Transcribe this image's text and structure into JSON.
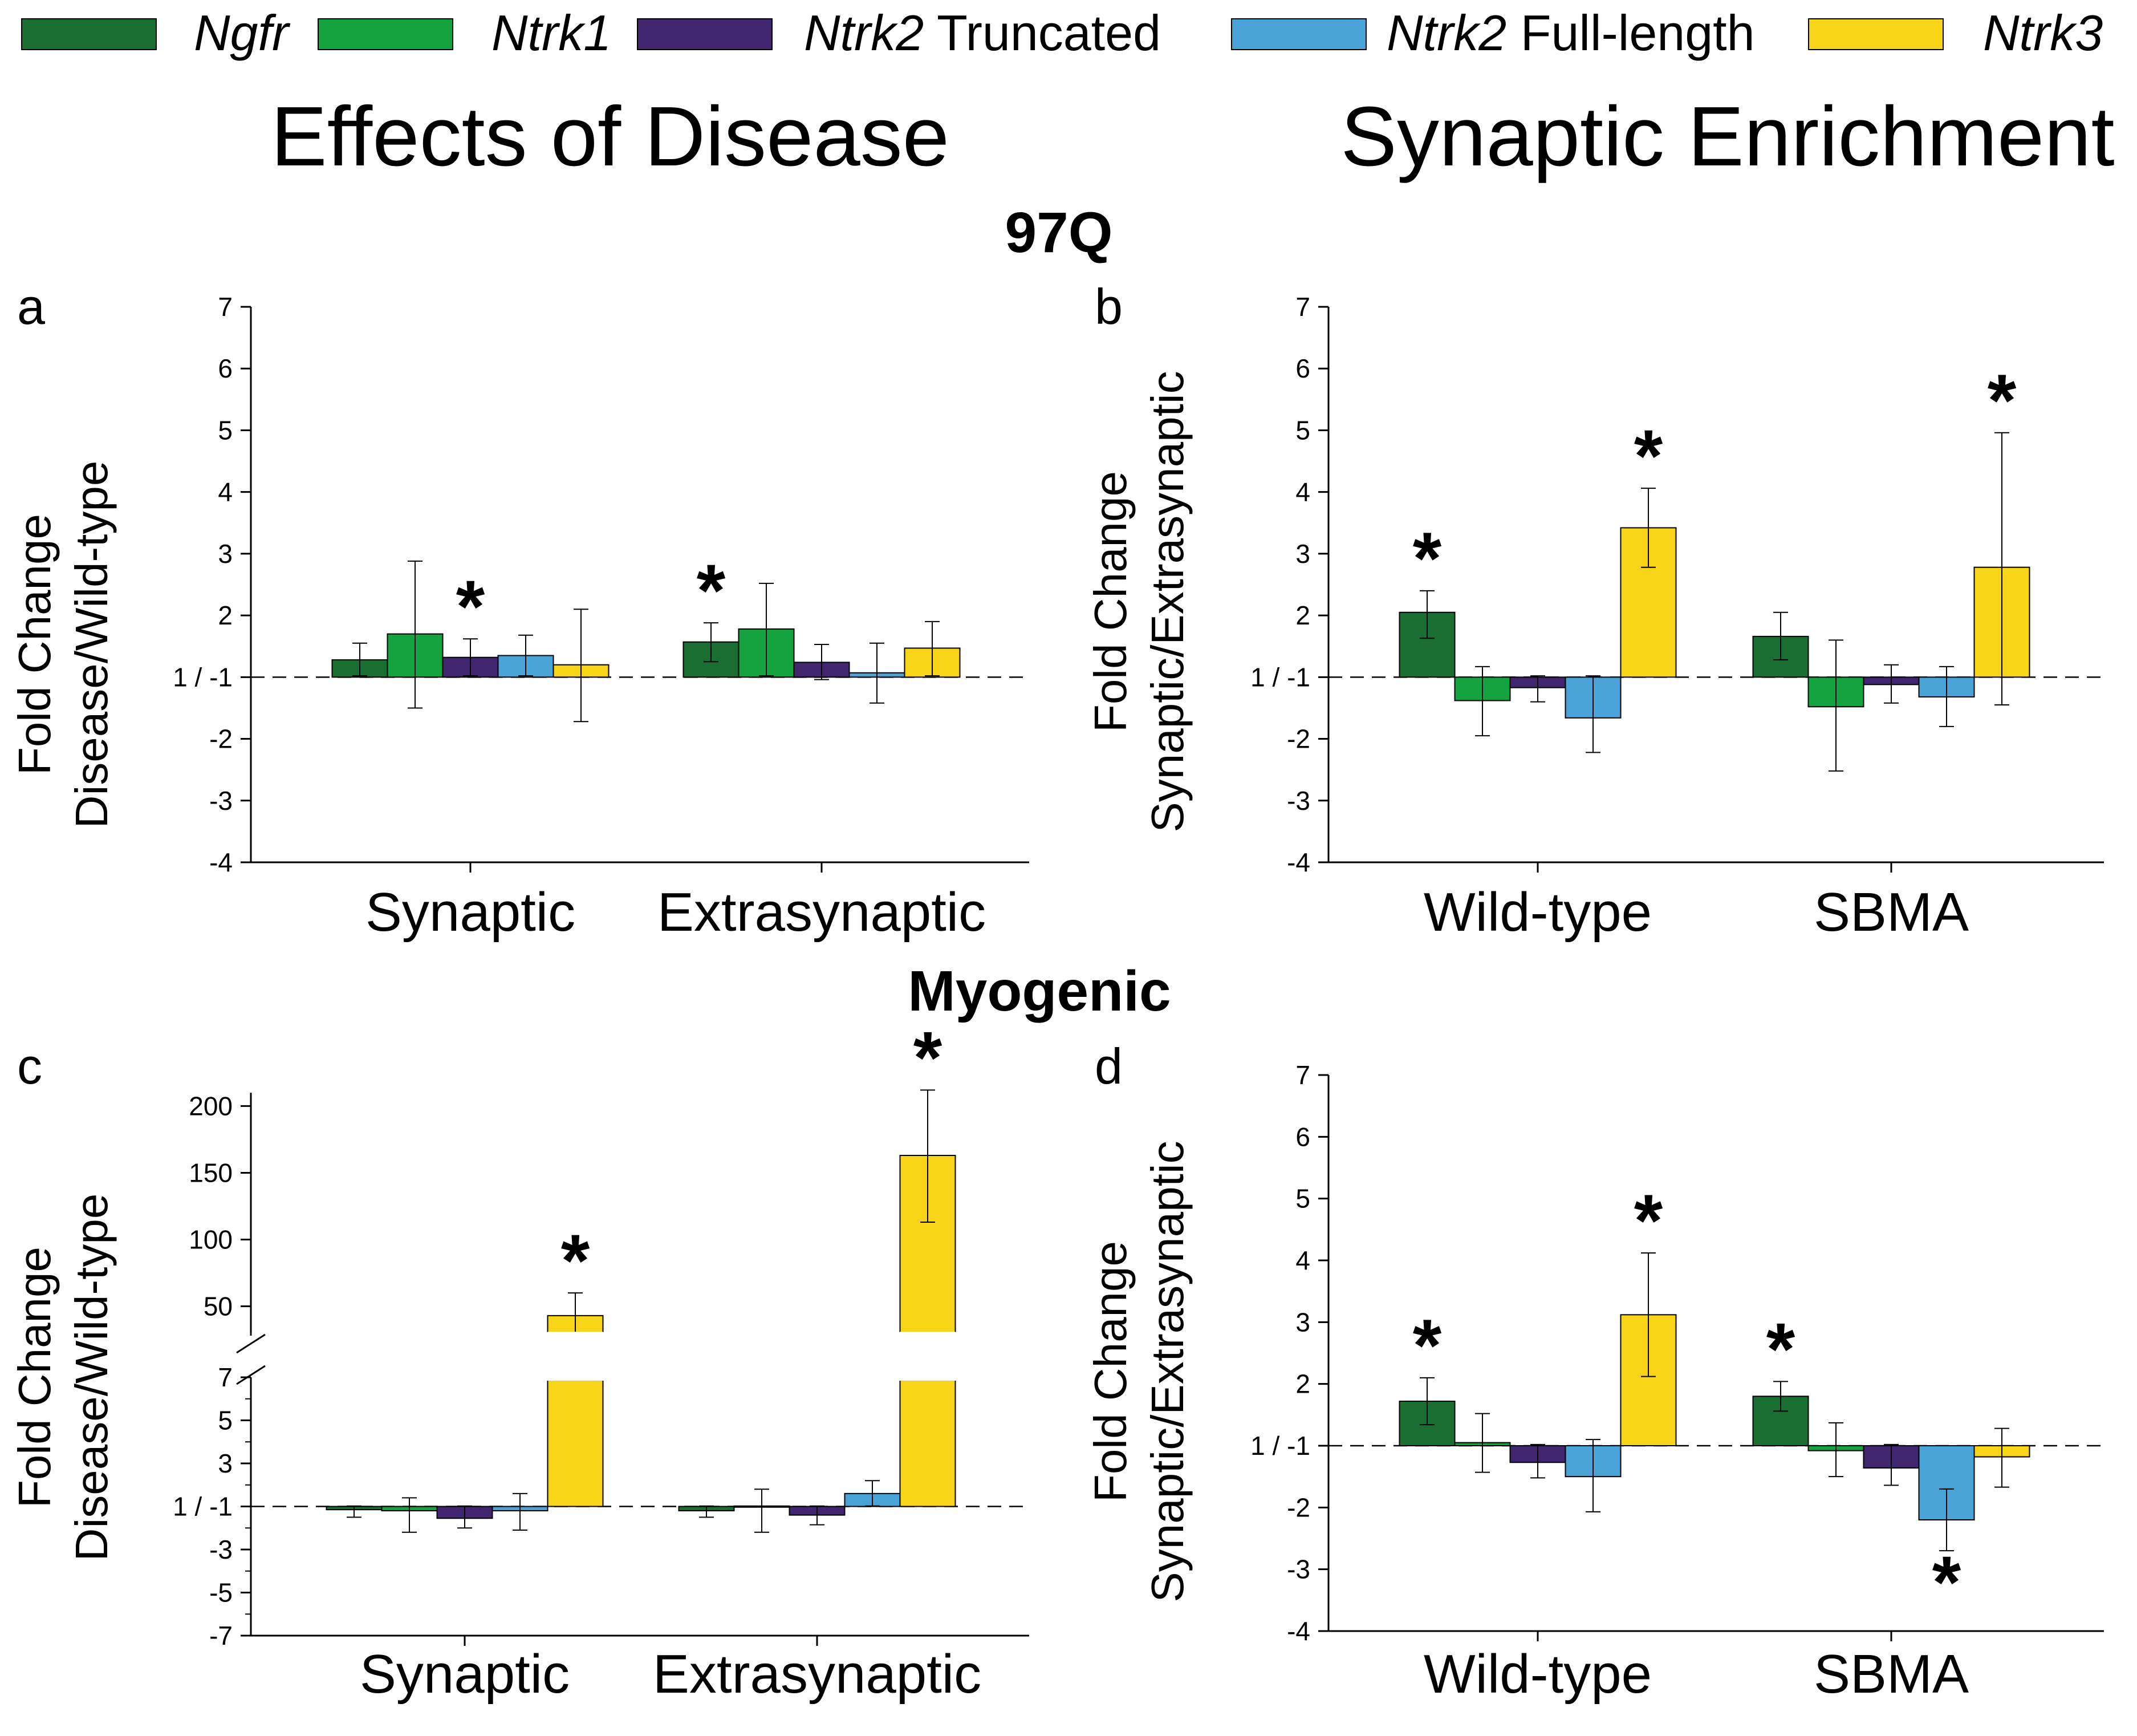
{
  "legend": [
    {
      "gene": "Ngfr",
      "suffix": ""
    },
    {
      "gene": "Ntrk1",
      "suffix": ""
    },
    {
      "gene": "Ntrk2",
      "suffix": " Truncated"
    },
    {
      "gene": "Ntrk2",
      "suffix": " Full-length"
    },
    {
      "gene": "Ntrk3",
      "suffix": ""
    }
  ],
  "colors": {
    "Ngfr": "#1a6e32",
    "Ntrk1": "#14a33e",
    "Ntrk2 Truncated": "#40266e",
    "Ntrk2 Full-length": "#4aa3d6",
    "Ntrk3": "#f7d417"
  },
  "headings": {
    "left": "Effects of Disease",
    "right": "Synaptic Enrichment",
    "row1": "97Q",
    "row2": "Myogenic"
  },
  "panels": {
    "a": "a",
    "b": "b",
    "c": "c",
    "d": "d"
  },
  "chart_data": [
    {
      "id": "a",
      "type": "bar",
      "ylabel_line1": "Fold Change",
      "ylabel_line2": "Disease/Wild-type",
      "ylim": [
        -4,
        7
      ],
      "yticks": [
        -4,
        -3,
        -2,
        "1 / -1",
        2,
        3,
        4,
        5,
        6,
        7
      ],
      "categories": [
        "Synaptic",
        "Extrasynaptic"
      ],
      "series": [
        {
          "name": "Ngfr",
          "values": [
            1.28,
            1.57
          ],
          "err_up": [
            1.55,
            1.88
          ],
          "err_low": [
            1.02,
            1.25
          ],
          "sig": [
            false,
            true
          ]
        },
        {
          "name": "Ntrk1",
          "values": [
            1.7,
            1.78
          ],
          "err_up": [
            2.88,
            2.52
          ],
          "err_low": [
            -1.5,
            1.02
          ],
          "sig": [
            false,
            false
          ]
        },
        {
          "name": "Ntrk2 Truncated",
          "values": [
            1.32,
            1.24
          ],
          "err_up": [
            1.62,
            1.53
          ],
          "err_low": [
            1.02,
            -1.04
          ],
          "sig": [
            true,
            false
          ]
        },
        {
          "name": "Ntrk2 Full-length",
          "values": [
            1.35,
            1.07
          ],
          "err_up": [
            1.68,
            1.55
          ],
          "err_low": [
            1.02,
            -1.42
          ],
          "sig": [
            false,
            false
          ]
        },
        {
          "name": "Ntrk3",
          "values": [
            1.2,
            1.47
          ],
          "err_up": [
            2.1,
            1.9
          ],
          "err_low": [
            -1.72,
            1.02
          ],
          "sig": [
            false,
            false
          ]
        }
      ]
    },
    {
      "id": "b",
      "type": "bar",
      "ylabel_line1": "Fold Change",
      "ylabel_line2": "Synaptic/Extrasynaptic",
      "ylim": [
        -4,
        7
      ],
      "yticks": [
        -4,
        -3,
        -2,
        "1 / -1",
        2,
        3,
        4,
        5,
        6,
        7
      ],
      "categories": [
        "Wild-type",
        "SBMA"
      ],
      "series": [
        {
          "name": "Ngfr",
          "values": [
            2.05,
            1.66
          ],
          "err_up": [
            2.4,
            2.05
          ],
          "err_low": [
            1.63,
            1.28
          ],
          "sig": [
            true,
            false
          ]
        },
        {
          "name": "Ntrk1",
          "values": [
            -1.38,
            -1.48
          ],
          "err_up": [
            1.17,
            1.6
          ],
          "err_low": [
            -1.95,
            -2.52
          ],
          "sig": [
            false,
            false
          ]
        },
        {
          "name": "Ntrk2 Truncated",
          "values": [
            -1.17,
            -1.12
          ],
          "err_up": [
            1.02,
            1.2
          ],
          "err_low": [
            -1.4,
            -1.42
          ],
          "sig": [
            false,
            false
          ]
        },
        {
          "name": "Ntrk2 Full-length",
          "values": [
            -1.66,
            -1.32
          ],
          "err_up": [
            1.02,
            1.17
          ],
          "err_low": [
            -2.22,
            -1.8
          ],
          "sig": [
            false,
            false
          ]
        },
        {
          "name": "Ntrk3",
          "values": [
            3.42,
            2.78
          ],
          "err_up": [
            4.06,
            4.96
          ],
          "err_low": [
            2.78,
            -1.45
          ],
          "sig": [
            true,
            true
          ]
        }
      ]
    },
    {
      "id": "c",
      "type": "bar",
      "ylabel_line1": "Fold Change",
      "ylabel_line2": "Disease/Wild-type",
      "axis_break": true,
      "lower_ylim": [
        -7,
        7
      ],
      "upper_ylim": [
        28,
        210
      ],
      "yticks_lower": [
        -7,
        -5,
        -3,
        "1 / -1",
        3,
        5,
        7
      ],
      "yticks_upper": [
        50,
        100,
        150,
        200
      ],
      "categories": [
        "Synaptic",
        "Extrasynaptic"
      ],
      "series": [
        {
          "name": "Ngfr",
          "values": [
            -1.15,
            -1.2
          ],
          "err_up": [
            1.02,
            1.02
          ],
          "err_low": [
            -1.5,
            -1.5
          ],
          "sig": [
            false,
            false
          ]
        },
        {
          "name": "Ntrk1",
          "values": [
            -1.2,
            1.02
          ],
          "err_up": [
            1.4,
            1.8
          ],
          "err_low": [
            -2.2,
            -2.2
          ],
          "sig": [
            false,
            false
          ]
        },
        {
          "name": "Ntrk2 Truncated",
          "values": [
            -1.55,
            -1.4
          ],
          "err_up": [
            1.02,
            1.02
          ],
          "err_low": [
            -2.0,
            -1.85
          ],
          "sig": [
            false,
            false
          ]
        },
        {
          "name": "Ntrk2 Full-length",
          "values": [
            -1.2,
            1.6
          ],
          "err_up": [
            1.6,
            2.2
          ],
          "err_low": [
            -2.1,
            1.02
          ],
          "sig": [
            false,
            false
          ]
        },
        {
          "name": "Ntrk3",
          "values": [
            43,
            163
          ],
          "err_up": [
            60,
            212
          ],
          "err_low": [
            28,
            113
          ],
          "sig": [
            true,
            true
          ]
        }
      ]
    },
    {
      "id": "d",
      "type": "bar",
      "ylabel_line1": "Fold Change",
      "ylabel_line2": "Synaptic/Extrasynaptic",
      "ylim": [
        -4,
        7
      ],
      "yticks": [
        -4,
        -3,
        -2,
        "1 / -1",
        2,
        3,
        4,
        5,
        6,
        7
      ],
      "categories": [
        "Wild-type",
        "SBMA"
      ],
      "series": [
        {
          "name": "Ngfr",
          "values": [
            1.72,
            1.8
          ],
          "err_up": [
            2.1,
            2.04
          ],
          "err_low": [
            1.34,
            1.56
          ],
          "sig": [
            true,
            true
          ]
        },
        {
          "name": "Ntrk1",
          "values": [
            1.05,
            -1.08
          ],
          "err_up": [
            1.52,
            1.37
          ],
          "err_low": [
            -1.43,
            -1.5
          ],
          "sig": [
            false,
            false
          ]
        },
        {
          "name": "Ntrk2 Truncated",
          "values": [
            -1.27,
            -1.36
          ],
          "err_up": [
            1.02,
            1.02
          ],
          "err_low": [
            -1.52,
            -1.64
          ],
          "sig": [
            false,
            false
          ]
        },
        {
          "name": "Ntrk2 Full-length",
          "values": [
            -1.5,
            -2.2
          ],
          "err_up": [
            1.1,
            -1.7
          ],
          "err_low": [
            -2.07,
            -2.7
          ],
          "sig": [
            false,
            true
          ]
        },
        {
          "name": "Ntrk3",
          "values": [
            3.12,
            -1.18
          ],
          "err_up": [
            4.12,
            1.28
          ],
          "err_low": [
            2.12,
            -1.67
          ],
          "sig": [
            true,
            false
          ]
        }
      ]
    }
  ]
}
